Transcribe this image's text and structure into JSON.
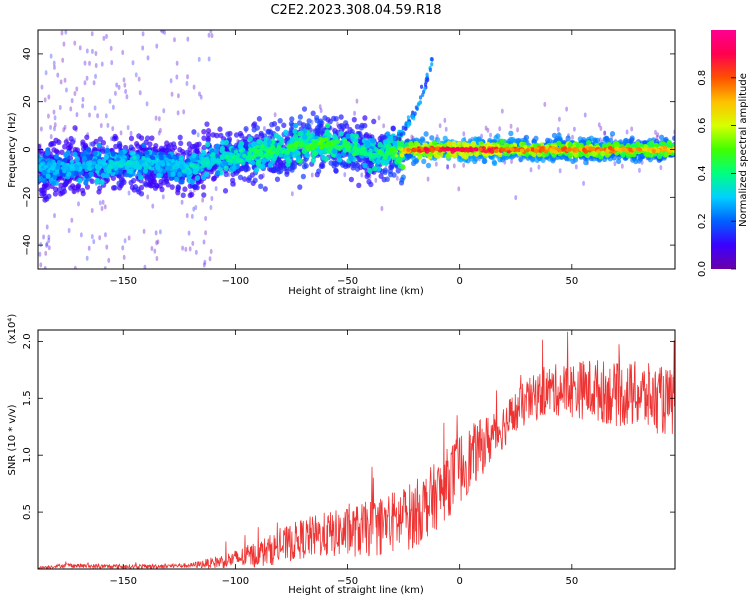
{
  "title": "C2E2.2023.308.04.59.R18",
  "chart_data": [
    {
      "type": "heatmap",
      "xlabel": "Height of straight line (km)",
      "ylabel": "Frequency (Hz)",
      "xlim": [
        -188,
        96
      ],
      "ylim": [
        -50,
        50
      ],
      "xticks": [
        -150,
        -100,
        -50,
        0,
        50
      ],
      "yticks": [
        -40,
        -20,
        0,
        20,
        40
      ],
      "colorbar": {
        "label": "Normalized spectral amplitude",
        "range": [
          0.0,
          1.0
        ],
        "ticks": [
          0.0,
          0.2,
          0.4,
          0.6,
          0.8
        ],
        "colormap": [
          "#6a00a8",
          "#3b00ff",
          "#0060ff",
          "#00d0ff",
          "#00ff80",
          "#40ff00",
          "#d8ff00",
          "#ffc000",
          "#ff5000",
          "#ff0050",
          "#ff0090"
        ]
      },
      "ridge": {
        "x": [
          -185,
          -170,
          -150,
          -130,
          -120,
          -110,
          -100,
          -90,
          -80,
          -70,
          -60,
          -50,
          -40,
          -30,
          -20,
          -10,
          0,
          20,
          40,
          60,
          80,
          95
        ],
        "frequency": [
          -8,
          -7,
          -6,
          -6,
          -8,
          -4,
          -3,
          -1,
          0,
          2,
          3,
          1,
          -2,
          -1,
          0,
          0,
          0,
          0,
          0,
          0,
          0,
          0
        ],
        "amplitude": [
          0.3,
          0.3,
          0.35,
          0.3,
          0.35,
          0.35,
          0.4,
          0.45,
          0.45,
          0.5,
          0.5,
          0.45,
          0.4,
          0.5,
          0.85,
          0.9,
          0.95,
          0.85,
          0.8,
          0.8,
          0.75,
          0.7
        ]
      },
      "streak": {
        "x": [
          -30,
          -25,
          -20,
          -15,
          -12
        ],
        "frequency": [
          3,
          8,
          15,
          28,
          38
        ]
      }
    },
    {
      "type": "line",
      "xlabel": "Height of straight line (km)",
      "ylabel": "SNR (10 * v/v)",
      "y_multiplier": "(x10⁴)",
      "xlim": [
        -188,
        96
      ],
      "ylim": [
        0,
        2.1
      ],
      "xticks": [
        -150,
        -100,
        -50,
        0,
        50
      ],
      "yticks": [
        0.5,
        1.0,
        1.5,
        2.0
      ],
      "series": [
        {
          "color": "#ee3333",
          "x": [
            -188,
            -175,
            -160,
            -140,
            -120,
            -110,
            -100,
            -90,
            -80,
            -70,
            -60,
            -50,
            -40,
            -30,
            -20,
            -10,
            0,
            10,
            20,
            30,
            40,
            50,
            60,
            70,
            80,
            90,
            96
          ],
          "mean": [
            0.01,
            0.03,
            0.02,
            0.02,
            0.03,
            0.05,
            0.08,
            0.12,
            0.18,
            0.25,
            0.28,
            0.3,
            0.33,
            0.38,
            0.45,
            0.62,
            0.85,
            1.05,
            1.25,
            1.45,
            1.55,
            1.55,
            1.55,
            1.5,
            1.5,
            1.45,
            1.42
          ],
          "spread": [
            0.01,
            0.02,
            0.02,
            0.02,
            0.02,
            0.05,
            0.08,
            0.12,
            0.15,
            0.18,
            0.2,
            0.22,
            0.25,
            0.28,
            0.3,
            0.3,
            0.32,
            0.25,
            0.2,
            0.2,
            0.22,
            0.25,
            0.28,
            0.28,
            0.3,
            0.3,
            0.3
          ]
        }
      ]
    }
  ]
}
